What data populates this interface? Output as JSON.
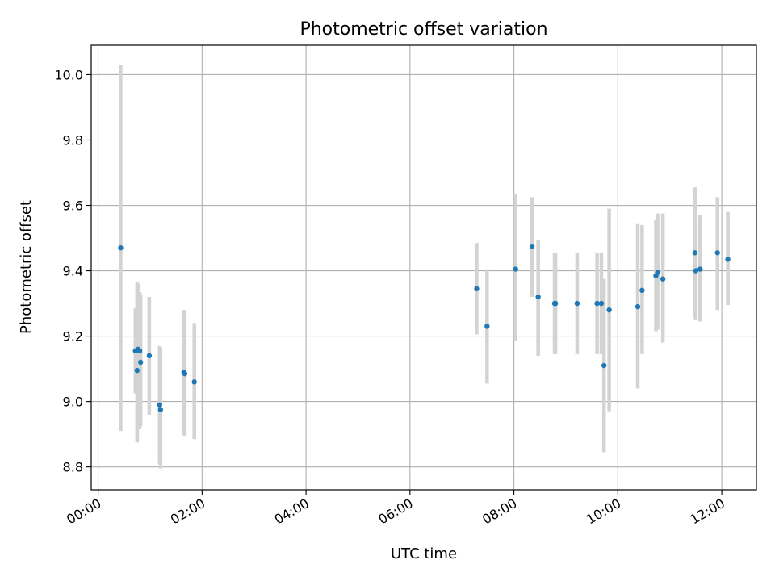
{
  "chart_data": {
    "type": "scatter",
    "title": "Photometric offset variation",
    "xlabel": "UTC time",
    "ylabel": "Photometric offset",
    "xlim": [
      "23:52",
      "12:40"
    ],
    "ylim": [
      8.73,
      10.09
    ],
    "x_ticks": [
      "00:00",
      "02:00",
      "04:00",
      "06:00",
      "08:00",
      "10:00",
      "12:00"
    ],
    "y_ticks": [
      "8.8",
      "9.0",
      "9.2",
      "9.4",
      "9.6",
      "9.8",
      "10.0"
    ],
    "grid": true,
    "colors": {
      "point": "#1f77b4",
      "error_bar": "#d3d3d3"
    },
    "series": [
      {
        "points": [
          {
            "x": "00:26",
            "y": 9.47,
            "lo": 8.91,
            "hi": 10.03
          },
          {
            "x": "00:43",
            "y": 9.155,
            "lo": 9.025,
            "hi": 9.285
          },
          {
            "x": "00:45",
            "y": 9.095,
            "lo": 8.875,
            "hi": 9.365
          },
          {
            "x": "00:46",
            "y": 9.16,
            "lo": 8.95,
            "hi": 9.36
          },
          {
            "x": "00:48",
            "y": 9.155,
            "lo": 8.915,
            "hi": 9.335
          },
          {
            "x": "00:49",
            "y": 9.12,
            "lo": 8.925,
            "hi": 9.325
          },
          {
            "x": "00:59",
            "y": 9.14,
            "lo": 8.96,
            "hi": 9.32
          },
          {
            "x": "01:11",
            "y": 8.99,
            "lo": 8.81,
            "hi": 9.17
          },
          {
            "x": "01:12",
            "y": 8.975,
            "lo": 8.795,
            "hi": 9.165
          },
          {
            "x": "01:39",
            "y": 9.09,
            "lo": 8.9,
            "hi": 9.28
          },
          {
            "x": "01:40",
            "y": 9.085,
            "lo": 8.895,
            "hi": 9.265
          },
          {
            "x": "01:51",
            "y": 9.06,
            "lo": 8.885,
            "hi": 9.24
          },
          {
            "x": "07:17",
            "y": 9.345,
            "lo": 9.205,
            "hi": 9.485
          },
          {
            "x": "07:29",
            "y": 9.23,
            "lo": 9.055,
            "hi": 9.405
          },
          {
            "x": "08:02",
            "y": 9.405,
            "lo": 9.185,
            "hi": 9.635
          },
          {
            "x": "08:21",
            "y": 9.475,
            "lo": 9.32,
            "hi": 9.625
          },
          {
            "x": "08:28",
            "y": 9.32,
            "lo": 9.14,
            "hi": 9.495
          },
          {
            "x": "08:47",
            "y": 9.3,
            "lo": 9.145,
            "hi": 9.455
          },
          {
            "x": "08:48",
            "y": 9.3,
            "lo": 9.145,
            "hi": 9.455
          },
          {
            "x": "09:13",
            "y": 9.3,
            "lo": 9.145,
            "hi": 9.455
          },
          {
            "x": "09:36",
            "y": 9.3,
            "lo": 9.145,
            "hi": 9.455
          },
          {
            "x": "09:41",
            "y": 9.3,
            "lo": 9.145,
            "hi": 9.455
          },
          {
            "x": "09:44",
            "y": 9.11,
            "lo": 8.845,
            "hi": 9.375
          },
          {
            "x": "09:50",
            "y": 9.28,
            "lo": 8.97,
            "hi": 9.59
          },
          {
            "x": "10:23",
            "y": 9.29,
            "lo": 9.04,
            "hi": 9.545
          },
          {
            "x": "10:28",
            "y": 9.34,
            "lo": 9.145,
            "hi": 9.54
          },
          {
            "x": "10:44",
            "y": 9.385,
            "lo": 9.215,
            "hi": 9.555
          },
          {
            "x": "10:46",
            "y": 9.395,
            "lo": 9.22,
            "hi": 9.575
          },
          {
            "x": "10:52",
            "y": 9.375,
            "lo": 9.18,
            "hi": 9.575
          },
          {
            "x": "11:29",
            "y": 9.455,
            "lo": 9.255,
            "hi": 9.655
          },
          {
            "x": "11:30",
            "y": 9.4,
            "lo": 9.25,
            "hi": 9.545
          },
          {
            "x": "11:35",
            "y": 9.405,
            "lo": 9.245,
            "hi": 9.57
          },
          {
            "x": "11:55",
            "y": 9.455,
            "lo": 9.28,
            "hi": 9.625
          },
          {
            "x": "12:07",
            "y": 9.435,
            "lo": 9.295,
            "hi": 9.58
          }
        ]
      }
    ]
  }
}
